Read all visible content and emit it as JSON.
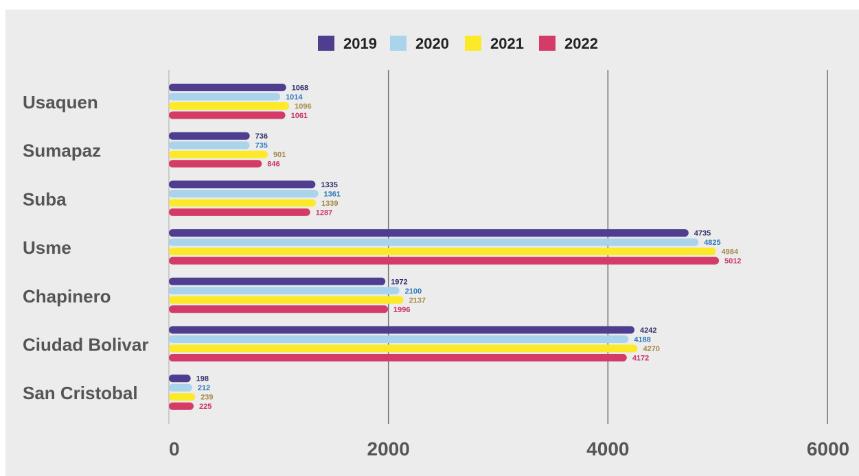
{
  "chart_data": {
    "type": "bar",
    "orientation": "horizontal",
    "categories": [
      "Usaquen",
      "Sumapaz",
      "Suba",
      "Usme",
      "Chapinero",
      "Ciudad Bolivar",
      "San Cristobal"
    ],
    "series": [
      {
        "name": "2019",
        "color": "#4f3d8f",
        "label_color": "#2c2c6e",
        "values": [
          1068,
          736,
          1335,
          4735,
          1972,
          4242,
          198
        ]
      },
      {
        "name": "2020",
        "color": "#a9d4ec",
        "label_color": "#2f78b8",
        "values": [
          1014,
          735,
          1361,
          4825,
          2100,
          4188,
          212
        ]
      },
      {
        "name": "2021",
        "color": "#fcea29",
        "label_color": "#a48a48",
        "values": [
          1096,
          901,
          1339,
          4984,
          2137,
          4270,
          239
        ]
      },
      {
        "name": "2022",
        "color": "#d43c67",
        "label_color": "#c93462",
        "values": [
          1061,
          846,
          1287,
          5012,
          1996,
          4172,
          225
        ]
      }
    ],
    "xlim": [
      0,
      6000
    ],
    "xticks": [
      "0",
      "2000",
      "4000",
      "6000"
    ],
    "grid": true,
    "legend_position": "top-center",
    "title": "",
    "xlabel": "",
    "ylabel": ""
  }
}
